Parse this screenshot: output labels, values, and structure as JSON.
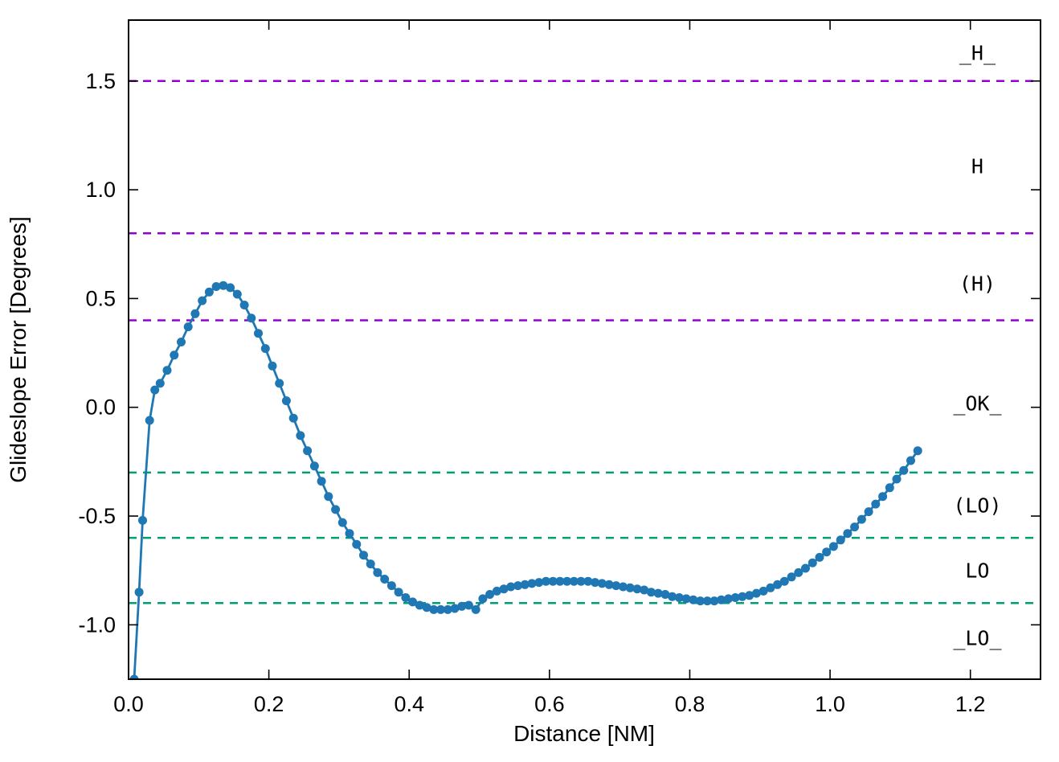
{
  "chart_data": {
    "type": "line",
    "title": "",
    "xlabel": "Distance [NM]",
    "ylabel": "Glideslope Error [Degrees]",
    "xlim": [
      0.0,
      1.3
    ],
    "ylim": [
      -1.25,
      1.78
    ],
    "xticks": [
      0.0,
      0.2,
      0.4,
      0.6,
      0.8,
      1.0,
      1.2
    ],
    "yticks": [
      -1.0,
      -0.5,
      0.0,
      0.5,
      1.0,
      1.5
    ],
    "grid": false,
    "legend": "none",
    "colors": {
      "series_blue": "#1f77b4",
      "limit_high_purple": "#9400d3",
      "limit_low_teal": "#009e73",
      "axis_black": "#000000"
    },
    "reference_lines": [
      {
        "y": 1.5,
        "color": "#9400d3",
        "style": "dashed",
        "name": "high-limit-outer"
      },
      {
        "y": 0.8,
        "color": "#9400d3",
        "style": "dashed",
        "name": "high-limit-mid"
      },
      {
        "y": 0.4,
        "color": "#9400d3",
        "style": "dashed",
        "name": "high-limit-inner"
      },
      {
        "y": -0.3,
        "color": "#009e73",
        "style": "dashed",
        "name": "low-limit-inner"
      },
      {
        "y": -0.6,
        "color": "#009e73",
        "style": "dashed",
        "name": "low-limit-mid"
      },
      {
        "y": -0.9,
        "color": "#009e73",
        "style": "dashed",
        "name": "low-limit-outer"
      }
    ],
    "zone_labels": [
      {
        "text": "_H_",
        "x": 1.21,
        "y": 1.63
      },
      {
        "text": "H",
        "x": 1.21,
        "y": 1.11
      },
      {
        "text": "(H)",
        "x": 1.21,
        "y": 0.57
      },
      {
        "text": "_OK_",
        "x": 1.21,
        "y": 0.02
      },
      {
        "text": "(LO)",
        "x": 1.21,
        "y": -0.45
      },
      {
        "text": "LO",
        "x": 1.21,
        "y": -0.75
      },
      {
        "text": "_LO_",
        "x": 1.21,
        "y": -1.06
      }
    ],
    "series": [
      {
        "name": "glideslope-error",
        "color": "#1f77b4",
        "marker": "circle",
        "points": [
          [
            0.008,
            -1.25
          ],
          [
            0.015,
            -0.85
          ],
          [
            0.02,
            -0.52
          ],
          [
            0.03,
            -0.06
          ],
          [
            0.0375,
            0.08
          ],
          [
            0.045,
            0.11
          ],
          [
            0.055,
            0.17
          ],
          [
            0.065,
            0.24
          ],
          [
            0.075,
            0.3
          ],
          [
            0.085,
            0.37
          ],
          [
            0.095,
            0.43
          ],
          [
            0.105,
            0.49
          ],
          [
            0.115,
            0.53
          ],
          [
            0.125,
            0.555
          ],
          [
            0.135,
            0.56
          ],
          [
            0.145,
            0.55
          ],
          [
            0.155,
            0.52
          ],
          [
            0.165,
            0.47
          ],
          [
            0.175,
            0.41
          ],
          [
            0.185,
            0.34
          ],
          [
            0.195,
            0.27
          ],
          [
            0.205,
            0.19
          ],
          [
            0.215,
            0.11
          ],
          [
            0.225,
            0.03
          ],
          [
            0.235,
            -0.05
          ],
          [
            0.245,
            -0.13
          ],
          [
            0.255,
            -0.2
          ],
          [
            0.265,
            -0.27
          ],
          [
            0.275,
            -0.34
          ],
          [
            0.285,
            -0.41
          ],
          [
            0.295,
            -0.47
          ],
          [
            0.305,
            -0.53
          ],
          [
            0.315,
            -0.58
          ],
          [
            0.325,
            -0.63
          ],
          [
            0.335,
            -0.68
          ],
          [
            0.345,
            -0.72
          ],
          [
            0.355,
            -0.76
          ],
          [
            0.365,
            -0.79
          ],
          [
            0.375,
            -0.82
          ],
          [
            0.385,
            -0.85
          ],
          [
            0.395,
            -0.875
          ],
          [
            0.405,
            -0.895
          ],
          [
            0.415,
            -0.91
          ],
          [
            0.425,
            -0.92
          ],
          [
            0.435,
            -0.93
          ],
          [
            0.445,
            -0.93
          ],
          [
            0.455,
            -0.93
          ],
          [
            0.465,
            -0.925
          ],
          [
            0.475,
            -0.915
          ],
          [
            0.485,
            -0.91
          ],
          [
            0.495,
            -0.93
          ],
          [
            0.505,
            -0.88
          ],
          [
            0.515,
            -0.86
          ],
          [
            0.525,
            -0.845
          ],
          [
            0.535,
            -0.835
          ],
          [
            0.545,
            -0.825
          ],
          [
            0.555,
            -0.82
          ],
          [
            0.565,
            -0.815
          ],
          [
            0.575,
            -0.81
          ],
          [
            0.585,
            -0.805
          ],
          [
            0.595,
            -0.8
          ],
          [
            0.605,
            -0.8
          ],
          [
            0.615,
            -0.8
          ],
          [
            0.625,
            -0.8
          ],
          [
            0.635,
            -0.8
          ],
          [
            0.645,
            -0.8
          ],
          [
            0.655,
            -0.8
          ],
          [
            0.665,
            -0.805
          ],
          [
            0.675,
            -0.81
          ],
          [
            0.685,
            -0.815
          ],
          [
            0.695,
            -0.82
          ],
          [
            0.705,
            -0.825
          ],
          [
            0.715,
            -0.83
          ],
          [
            0.725,
            -0.835
          ],
          [
            0.735,
            -0.84
          ],
          [
            0.745,
            -0.85
          ],
          [
            0.755,
            -0.855
          ],
          [
            0.765,
            -0.86
          ],
          [
            0.775,
            -0.87
          ],
          [
            0.785,
            -0.875
          ],
          [
            0.795,
            -0.88
          ],
          [
            0.805,
            -0.885
          ],
          [
            0.815,
            -0.89
          ],
          [
            0.825,
            -0.89
          ],
          [
            0.835,
            -0.89
          ],
          [
            0.845,
            -0.885
          ],
          [
            0.855,
            -0.88
          ],
          [
            0.865,
            -0.875
          ],
          [
            0.875,
            -0.87
          ],
          [
            0.885,
            -0.865
          ],
          [
            0.895,
            -0.855
          ],
          [
            0.905,
            -0.845
          ],
          [
            0.915,
            -0.83
          ],
          [
            0.925,
            -0.815
          ],
          [
            0.935,
            -0.8
          ],
          [
            0.945,
            -0.78
          ],
          [
            0.955,
            -0.76
          ],
          [
            0.965,
            -0.74
          ],
          [
            0.975,
            -0.715
          ],
          [
            0.985,
            -0.69
          ],
          [
            0.995,
            -0.665
          ],
          [
            1.005,
            -0.64
          ],
          [
            1.015,
            -0.61
          ],
          [
            1.025,
            -0.58
          ],
          [
            1.035,
            -0.55
          ],
          [
            1.045,
            -0.515
          ],
          [
            1.055,
            -0.48
          ],
          [
            1.065,
            -0.445
          ],
          [
            1.075,
            -0.41
          ],
          [
            1.085,
            -0.37
          ],
          [
            1.095,
            -0.33
          ],
          [
            1.105,
            -0.29
          ],
          [
            1.115,
            -0.245
          ],
          [
            1.125,
            -0.2
          ]
        ]
      }
    ]
  }
}
